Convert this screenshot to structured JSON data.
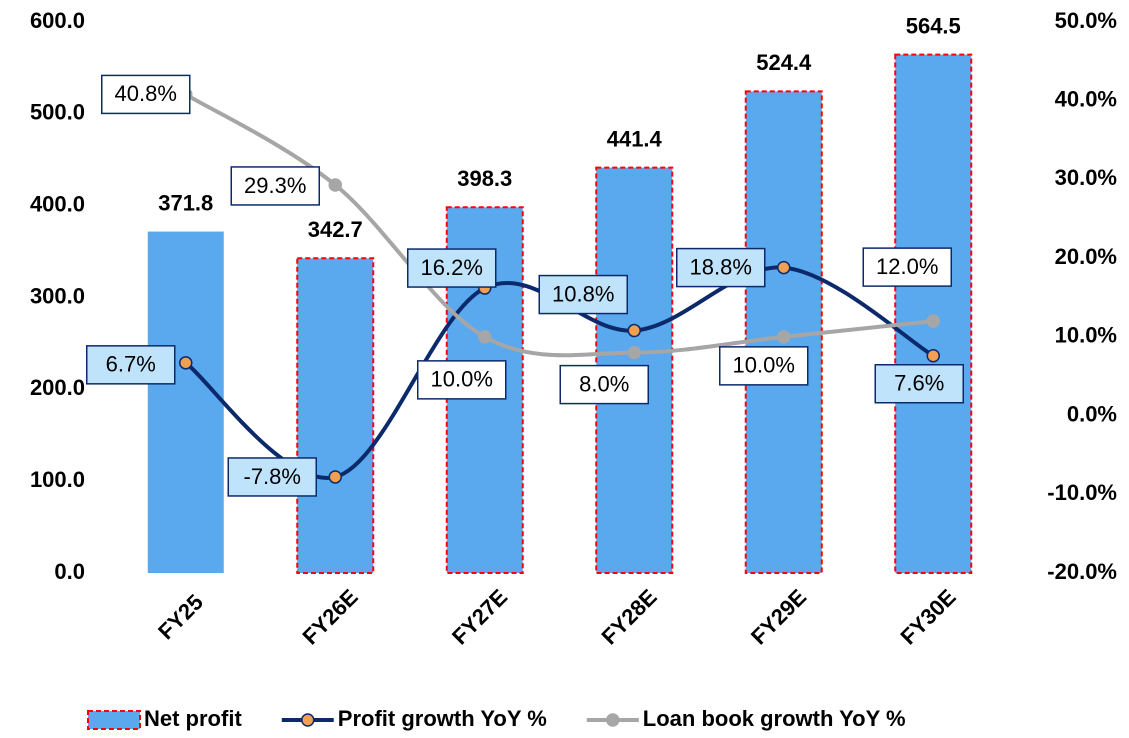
{
  "chart_data": {
    "type": "bar-line",
    "categories": [
      "FY25",
      "FY26E",
      "FY27E",
      "FY28E",
      "FY29E",
      "FY30E"
    ],
    "ylim": [
      0,
      600
    ],
    "yticks": [
      {
        "value": 0,
        "label": "0.0"
      },
      {
        "value": 100,
        "label": "100.0"
      },
      {
        "value": 200,
        "label": "200.0"
      },
      {
        "value": 300,
        "label": "300.0"
      },
      {
        "value": 400,
        "label": "400.0"
      },
      {
        "value": 500,
        "label": "500.0"
      },
      {
        "value": 600,
        "label": "600.0"
      }
    ],
    "y2lim": [
      -20,
      50
    ],
    "y2ticks": [
      {
        "value": -20,
        "label": "-20.0%"
      },
      {
        "value": -10,
        "label": "-10.0%"
      },
      {
        "value": 0,
        "label": "0.0%"
      },
      {
        "value": 10,
        "label": "10.0%"
      },
      {
        "value": 20,
        "label": "20.0%"
      },
      {
        "value": 30,
        "label": "30.0%"
      },
      {
        "value": 40,
        "label": "40.0%"
      },
      {
        "value": 50,
        "label": "50.0%"
      }
    ],
    "legend": "bottom",
    "series": [
      {
        "name": "Net profit",
        "type": "bar",
        "color": "#5aa9ef",
        "edge_colors": [
          null,
          "#ff0000",
          "#ff0000",
          "#ff0000",
          "#ff0000",
          "#ff0000"
        ],
        "values": [
          371.8,
          342.7,
          398.3,
          441.4,
          524.4,
          564.5
        ]
      },
      {
        "name": "Profit growth YoY %",
        "type": "line",
        "axis": "y2",
        "color": "#0c2a6b",
        "marker_color": "#f0a050",
        "label_fill": "#bfe3fb",
        "values": [
          6.7,
          -7.8,
          16.2,
          10.8,
          18.8,
          7.6
        ],
        "value_labels": [
          "6.7%",
          "-7.8%",
          "16.2%",
          "10.8%",
          "18.8%",
          "7.6%"
        ]
      },
      {
        "name": "Loan book growth YoY %",
        "type": "line",
        "axis": "y2",
        "color": "#a6a6a6",
        "marker_color": "#a6a6a6",
        "label_fill": "#ffffff",
        "values": [
          40.8,
          29.3,
          10.0,
          8.0,
          10.0,
          12.0
        ],
        "value_labels": [
          "40.8%",
          "29.3%",
          "10.0%",
          "8.0%",
          "10.0%",
          "12.0%"
        ]
      }
    ]
  }
}
